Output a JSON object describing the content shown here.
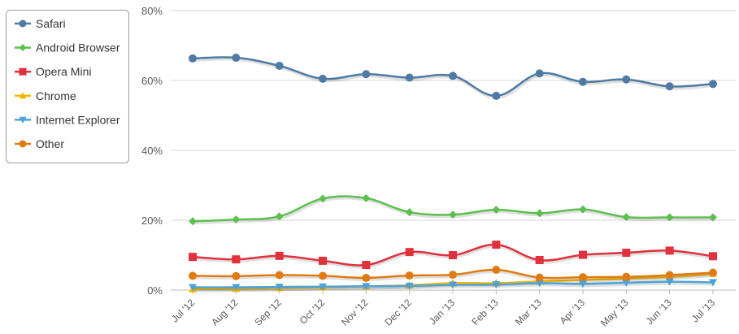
{
  "chart_data": {
    "type": "line",
    "title": "",
    "xlabel": "",
    "ylabel": "",
    "ylim": [
      0,
      80
    ],
    "yticks": [
      "0%",
      "20%",
      "40%",
      "60%",
      "80%"
    ],
    "ytick_values": [
      0,
      20,
      40,
      60,
      80
    ],
    "grid": true,
    "legend_position": "top-left",
    "categories": [
      "Jul '12",
      "Aug '12",
      "Sep '12",
      "Oct '12",
      "Nov '12",
      "Dec '12",
      "Jan '13",
      "Feb '13",
      "Mar '13",
      "Apr '13",
      "May '13",
      "Jun '13",
      "Jul '13"
    ],
    "series": [
      {
        "name": "Safari",
        "color": "#4f7aa3",
        "marker": "circle",
        "values": [
          66.3,
          66.5,
          64.2,
          60.5,
          61.8,
          60.8,
          61.3,
          55.6,
          62.0,
          59.6,
          60.3,
          58.3,
          59.0
        ]
      },
      {
        "name": "Android Browser",
        "color": "#5cbf4e",
        "marker": "diamond",
        "values": [
          19.7,
          20.2,
          21.1,
          26.2,
          26.3,
          22.3,
          21.6,
          23.0,
          22.0,
          23.1,
          20.9,
          20.8,
          20.8
        ]
      },
      {
        "name": "Opera Mini",
        "color": "#e0313d",
        "marker": "square",
        "values": [
          9.5,
          8.8,
          9.8,
          8.4,
          7.2,
          10.9,
          10.0,
          13.0,
          8.6,
          10.1,
          10.7,
          11.3,
          9.7
        ]
      },
      {
        "name": "Chrome",
        "color": "#f2b705",
        "marker": "triangle-up",
        "values": [
          0.3,
          0.4,
          0.6,
          0.8,
          1.1,
          1.4,
          2.0,
          2.0,
          2.5,
          2.9,
          3.3,
          3.8,
          4.7
        ]
      },
      {
        "name": "Internet Explorer",
        "color": "#4ca2d9",
        "marker": "triangle-down",
        "values": [
          0.8,
          0.8,
          0.9,
          1.0,
          1.1,
          1.2,
          1.5,
          1.6,
          2.0,
          1.8,
          2.1,
          2.4,
          2.2
        ]
      },
      {
        "name": "Other",
        "color": "#e07b14",
        "marker": "circle",
        "values": [
          4.1,
          4.0,
          4.3,
          4.1,
          3.5,
          4.2,
          4.4,
          5.8,
          3.6,
          3.7,
          3.8,
          4.3,
          5.0
        ]
      }
    ]
  }
}
